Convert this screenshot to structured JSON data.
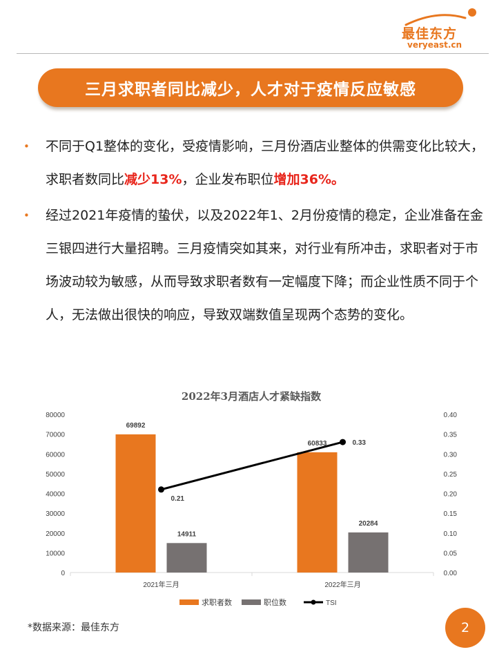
{
  "logo": {
    "name_cn": "最佳东方",
    "domain": "veryeast.cn",
    "icon": "orange-swoosh-logo-icon"
  },
  "banner": {
    "title": "三月求职者同比减少，人才对于疫情反应敏感"
  },
  "bullets": [
    {
      "text_1": "不同于Q1整体的变化，受疫情影响，三月份酒店业整体的供需变化比较大，求职者数同比",
      "highlight_1": "减少13%",
      "text_2": "，企业发布职位",
      "highlight_2": "增加36%。"
    },
    {
      "text": "经过2021年疫情的蛰伏，以及2022年1、2月份疫情的稳定，企业准备在金三银四进行大量招聘。三月疫情突如其来，对行业有所冲击，求职者对于市场波动较为敏感，从而导致求职者数有一定幅度下降；而企业性质不同于个人，无法做出很快的响应，导致双端数值呈现两个态势的变化。"
    }
  ],
  "chart_data": {
    "type": "bar",
    "title": "2022年3月酒店人才紧缺指数",
    "categories": [
      "2021年三月",
      "2022年三月"
    ],
    "series": [
      {
        "name": "求职者数",
        "values": [
          69892,
          60833
        ],
        "color": "#e8771f",
        "axis": "left"
      },
      {
        "name": "职位数",
        "values": [
          14911,
          20284
        ],
        "color": "#767171",
        "axis": "left"
      },
      {
        "name": "TSI",
        "values": [
          0.21,
          0.33
        ],
        "type": "line",
        "color": "#000000",
        "axis": "right"
      }
    ],
    "data_labels": {
      "求职者数": [
        "69892",
        "60833"
      ],
      "职位数": [
        "14911",
        "20284"
      ],
      "TSI": [
        "0.21",
        "0.33"
      ]
    },
    "ylim_left": [
      0,
      80000
    ],
    "yticks_left": [
      "0",
      "10000",
      "20000",
      "30000",
      "40000",
      "50000",
      "60000",
      "70000",
      "80000"
    ],
    "ylim_right": [
      0,
      0.4
    ],
    "yticks_right": [
      "0.00",
      "0.05",
      "0.10",
      "0.15",
      "0.20",
      "0.25",
      "0.30",
      "0.35",
      "0.40"
    ],
    "grid": false,
    "legend_position": "bottom"
  },
  "footer": {
    "source": "*数据来源：最佳东方",
    "page_number": "2"
  }
}
